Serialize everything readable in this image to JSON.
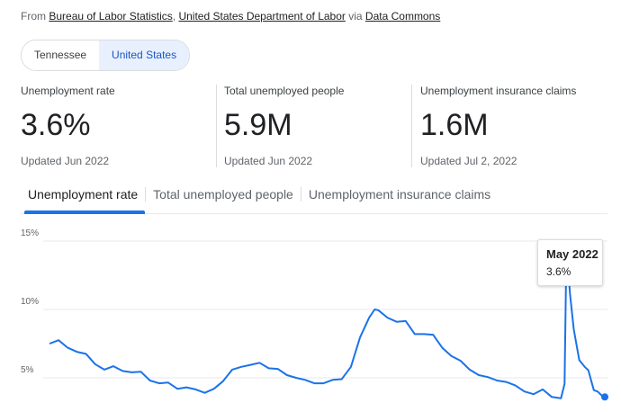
{
  "source": {
    "prefix": "From",
    "org1": "Bureau of Labor Statistics",
    "sep": ",",
    "org2": "United States Department of Labor",
    "via": "via",
    "provider": "Data Commons"
  },
  "region_toggle": {
    "options": [
      "Tennessee",
      "United States"
    ],
    "selected": "United States"
  },
  "stats": [
    {
      "label": "Unemployment rate",
      "value": "3.6%",
      "updated": "Updated Jun 2022"
    },
    {
      "label": "Total unemployed people",
      "value": "5.9M",
      "updated": "Updated Jun 2022"
    },
    {
      "label": "Unemployment insurance claims",
      "value": "1.6M",
      "updated": "Updated Jul 2, 2022"
    }
  ],
  "tabs": [
    {
      "label": "Unemployment rate",
      "active": true
    },
    {
      "label": "Total unemployed people",
      "active": false
    },
    {
      "label": "Unemployment insurance claims",
      "active": false
    }
  ],
  "tooltip": {
    "date": "May 2022",
    "value": "3.6%"
  },
  "colors": {
    "accent": "#1a73e8",
    "line": "#1a73e8",
    "grid": "#e8eaed"
  },
  "chart_data": {
    "type": "line",
    "title": "",
    "xlabel": "",
    "ylabel": "",
    "y_ticks": [
      "15%",
      "10%",
      "5%"
    ],
    "ylim": [
      0,
      15
    ],
    "grid": true,
    "x_range": [
      "1992",
      "2022"
    ],
    "series": [
      {
        "values": [
          [
            1992.0,
            7.5
          ],
          [
            1992.5,
            7.6
          ],
          [
            1993.0,
            7.3
          ],
          [
            1993.5,
            6.9
          ],
          [
            1994.0,
            6.6
          ],
          [
            1994.5,
            6.1
          ],
          [
            1995.0,
            5.6
          ],
          [
            1995.5,
            5.7
          ],
          [
            1996.0,
            5.6
          ],
          [
            1996.5,
            5.4
          ],
          [
            1997.0,
            5.3
          ],
          [
            1997.5,
            4.9
          ],
          [
            1998.0,
            4.6
          ],
          [
            1998.5,
            4.5
          ],
          [
            1999.0,
            4.3
          ],
          [
            1999.5,
            4.3
          ],
          [
            2000.0,
            4.0
          ],
          [
            2000.5,
            4.0
          ],
          [
            2001.0,
            4.2
          ],
          [
            2001.5,
            4.6
          ],
          [
            2002.0,
            5.7
          ],
          [
            2002.5,
            5.8
          ],
          [
            2003.0,
            5.8
          ],
          [
            2003.5,
            6.2
          ],
          [
            2004.0,
            5.7
          ],
          [
            2004.5,
            5.5
          ],
          [
            2005.0,
            5.3
          ],
          [
            2005.5,
            5.0
          ],
          [
            2006.0,
            4.7
          ],
          [
            2006.5,
            4.7
          ],
          [
            2007.0,
            4.6
          ],
          [
            2007.5,
            4.7
          ],
          [
            2008.0,
            5.0
          ],
          [
            2008.5,
            5.8
          ],
          [
            2009.0,
            7.8
          ],
          [
            2009.5,
            9.5
          ],
          [
            2009.8,
            10.0
          ],
          [
            2010.0,
            9.8
          ],
          [
            2010.5,
            9.5
          ],
          [
            2011.0,
            9.1
          ],
          [
            2011.5,
            9.0
          ],
          [
            2012.0,
            8.3
          ],
          [
            2012.5,
            8.2
          ],
          [
            2013.0,
            8.0
          ],
          [
            2013.5,
            7.3
          ],
          [
            2014.0,
            6.6
          ],
          [
            2014.5,
            6.1
          ],
          [
            2015.0,
            5.7
          ],
          [
            2015.5,
            5.2
          ],
          [
            2016.0,
            4.9
          ],
          [
            2016.5,
            4.9
          ],
          [
            2017.0,
            4.7
          ],
          [
            2017.5,
            4.3
          ],
          [
            2018.0,
            4.1
          ],
          [
            2018.5,
            3.8
          ],
          [
            2019.0,
            4.0
          ],
          [
            2019.5,
            3.7
          ],
          [
            2020.0,
            3.5
          ],
          [
            2020.2,
            4.4
          ],
          [
            2020.3,
            14.7
          ],
          [
            2020.5,
            11.1
          ],
          [
            2020.7,
            8.4
          ],
          [
            2021.0,
            6.4
          ],
          [
            2021.3,
            5.8
          ],
          [
            2021.5,
            5.4
          ],
          [
            2021.8,
            4.2
          ],
          [
            2022.0,
            4.0
          ],
          [
            2022.2,
            3.6
          ],
          [
            2022.4,
            3.6
          ]
        ]
      }
    ],
    "highlight": {
      "x": "May 2022",
      "y": 3.6
    }
  }
}
